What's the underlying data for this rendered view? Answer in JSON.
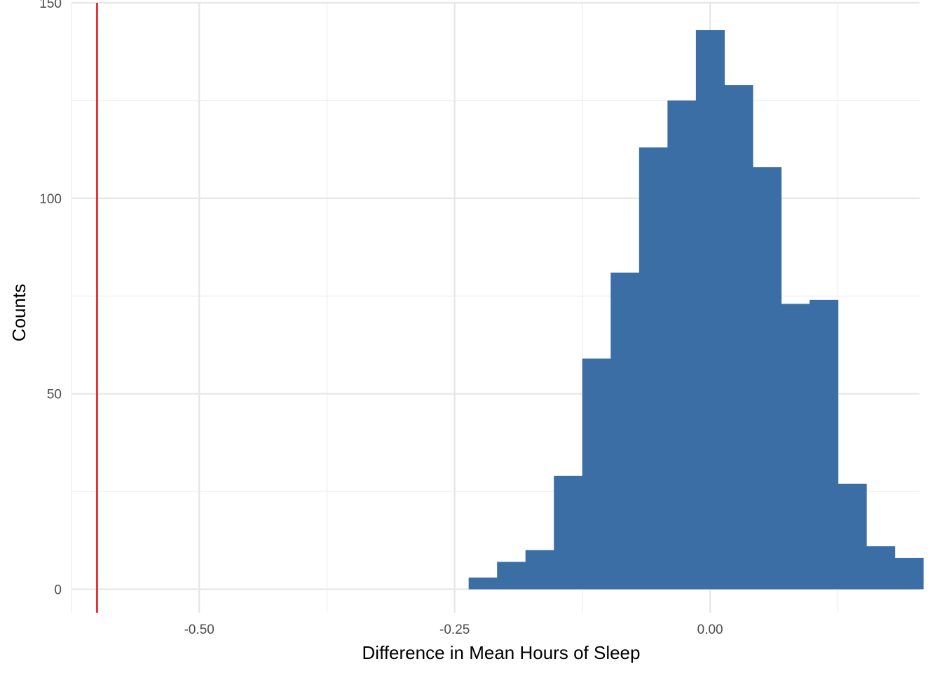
{
  "chart_data": {
    "type": "histogram",
    "xlabel": "Difference in Mean Hours of Sleep",
    "ylabel": "Counts",
    "xlim": [
      -0.625,
      0.205
    ],
    "ylim": [
      -6,
      150
    ],
    "x_ticks": [
      {
        "value": -0.5,
        "label": "-0.50"
      },
      {
        "value": -0.25,
        "label": "-0.25"
      },
      {
        "value": 0.0,
        "label": "0.00"
      }
    ],
    "x_minor_ticks": [
      -0.625,
      -0.375,
      -0.125,
      0.125
    ],
    "y_ticks": [
      {
        "value": 0,
        "label": "0"
      },
      {
        "value": 50,
        "label": "50"
      },
      {
        "value": 100,
        "label": "100"
      },
      {
        "value": 150,
        "label": "150"
      }
    ],
    "y_minor_ticks": [
      25,
      75,
      125
    ],
    "bin_width": 0.0278,
    "bins": [
      {
        "x_start": -0.2363,
        "count": 3
      },
      {
        "x_start": -0.2085,
        "count": 7
      },
      {
        "x_start": -0.1807,
        "count": 10
      },
      {
        "x_start": -0.1529,
        "count": 29
      },
      {
        "x_start": -0.1251,
        "count": 59
      },
      {
        "x_start": -0.0973,
        "count": 81
      },
      {
        "x_start": -0.0695,
        "count": 113
      },
      {
        "x_start": -0.0417,
        "count": 125
      },
      {
        "x_start": -0.0139,
        "count": 143
      },
      {
        "x_start": 0.0139,
        "count": 129
      },
      {
        "x_start": 0.0417,
        "count": 108
      },
      {
        "x_start": 0.0695,
        "count": 73
      },
      {
        "x_start": 0.0973,
        "count": 74
      },
      {
        "x_start": 0.1251,
        "count": 27
      },
      {
        "x_start": 0.1529,
        "count": 11
      },
      {
        "x_start": 0.1807,
        "count": 8
      }
    ],
    "reference_line": {
      "x": -0.6,
      "color": "#e8141c"
    },
    "bar_color": "#3b6ea5",
    "grid": true,
    "legend": "none"
  }
}
